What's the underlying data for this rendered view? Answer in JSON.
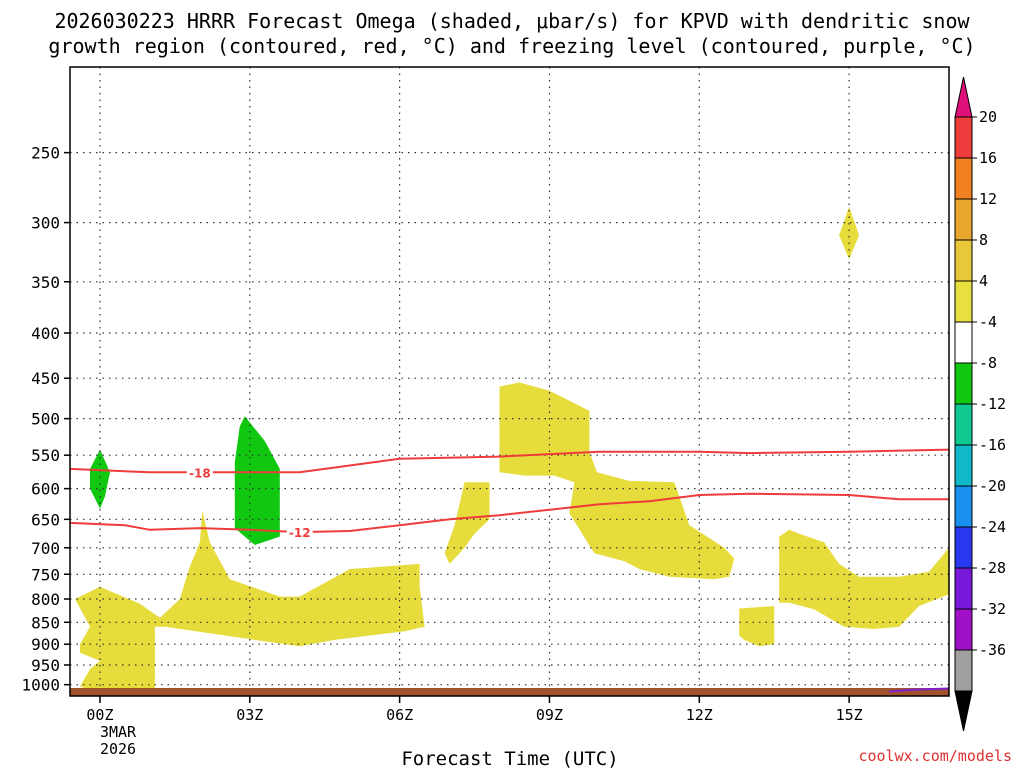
{
  "chart_data": {
    "type": "contour",
    "title_line1": "2026030223 HRRR Forecast Omega (shaded, μbar/s) for KPVD with dendritic snow",
    "title_line2": "growth region (contoured, red, °C) and freezing level (contoured, purple, °C)",
    "xlabel": "Forecast Time (UTC)",
    "credit": "coolwx.com/models",
    "x_ticks": [
      "00Z",
      "03Z",
      "06Z",
      "09Z",
      "12Z",
      "15Z"
    ],
    "x_tick_hours": [
      0,
      3,
      6,
      9,
      12,
      15
    ],
    "x_range_hours": [
      -0.6,
      17.0
    ],
    "date_line1": "3MAR",
    "date_line2": "2026",
    "y_ticks": [
      250,
      300,
      350,
      400,
      450,
      500,
      550,
      600,
      650,
      700,
      750,
      800,
      850,
      900,
      950,
      1000
    ],
    "y_range_hpa": [
      200,
      1030
    ],
    "colorbar": {
      "labels": [
        "20",
        "16",
        "12",
        "8",
        "4",
        "-4",
        "-8",
        "-12",
        "-16",
        "-20",
        "-24",
        "-28",
        "-32",
        "-36"
      ],
      "colors": [
        "#ee3b3b",
        "#f08020",
        "#e8a830",
        "#e8c838",
        "#e8e040",
        "#ffffff",
        "#10c810",
        "#10c890",
        "#10b8c8",
        "#1890f0",
        "#2838f0",
        "#7818d8",
        "#a010c8",
        "#a0a0a0"
      ],
      "top_color": "#e0107a",
      "bottom_color": "#000000"
    },
    "positive_fill": "#e6dc3c",
    "negative_fill": "#10c810",
    "contours": [
      {
        "label": "-18",
        "color": "#ee3b3b",
        "label_hour": 2.0,
        "points": [
          [
            -0.6,
            570
          ],
          [
            1,
            575
          ],
          [
            2,
            575
          ],
          [
            4,
            575
          ],
          [
            6,
            555
          ],
          [
            8,
            552
          ],
          [
            10,
            545
          ],
          [
            12,
            545
          ],
          [
            13,
            547
          ],
          [
            15,
            545
          ],
          [
            17,
            542
          ]
        ]
      },
      {
        "label": "-12",
        "color": "#ee3b3b",
        "label_hour": 4.0,
        "points": [
          [
            -0.6,
            656
          ],
          [
            0.5,
            660
          ],
          [
            1,
            668
          ],
          [
            2,
            665
          ],
          [
            3,
            668
          ],
          [
            4,
            672
          ],
          [
            5,
            670
          ],
          [
            6,
            660
          ],
          [
            7,
            650
          ],
          [
            8,
            643
          ],
          [
            9,
            634
          ],
          [
            10,
            625
          ],
          [
            11,
            620
          ],
          [
            12,
            610
          ],
          [
            13,
            608
          ],
          [
            15,
            610
          ],
          [
            16,
            617
          ],
          [
            17,
            617
          ]
        ]
      },
      {
        "label": "",
        "color": "#8020d0",
        "label_hour": null,
        "points": [
          [
            15.8,
            1018
          ],
          [
            16.3,
            1013
          ],
          [
            17,
            1010
          ]
        ]
      }
    ],
    "positive_regions": [
      [
        [
          -0.4,
          900
        ],
        [
          -0.2,
          860
        ],
        [
          -0.5,
          800
        ],
        [
          0,
          775
        ],
        [
          0.8,
          810
        ],
        [
          1.2,
          840
        ],
        [
          1.6,
          800
        ],
        [
          1.8,
          735
        ],
        [
          2,
          690
        ],
        [
          2.05,
          635
        ],
        [
          2.2,
          690
        ],
        [
          2.6,
          760
        ],
        [
          3.6,
          795
        ],
        [
          4,
          795
        ],
        [
          5,
          740
        ],
        [
          6.4,
          730
        ],
        [
          6.4,
          775
        ],
        [
          6.5,
          860
        ],
        [
          6.1,
          870
        ],
        [
          4.7,
          890
        ],
        [
          4,
          905
        ],
        [
          1.3,
          860
        ],
        [
          1.1,
          860
        ],
        [
          1.1,
          1020
        ],
        [
          1.5,
          1018
        ],
        [
          0.5,
          1025
        ],
        [
          0,
          1020
        ],
        [
          -0.4,
          1005
        ],
        [
          -0.2,
          960
        ],
        [
          0,
          940
        ],
        [
          -0.4,
          920
        ]
      ],
      [
        [
          7.0,
          730
        ],
        [
          6.9,
          710
        ],
        [
          7.1,
          660
        ],
        [
          7.3,
          590
        ],
        [
          7.8,
          590
        ],
        [
          7.8,
          650
        ],
        [
          7.5,
          675
        ],
        [
          7.3,
          700
        ]
      ],
      [
        [
          8.0,
          460
        ],
        [
          8.4,
          455
        ],
        [
          9,
          465
        ],
        [
          9.8,
          490
        ],
        [
          9.8,
          545
        ],
        [
          9.95,
          575
        ],
        [
          10.6,
          588
        ],
        [
          11.5,
          590
        ],
        [
          11.8,
          660
        ],
        [
          12.5,
          700
        ],
        [
          12.7,
          720
        ],
        [
          12.6,
          755
        ],
        [
          12.3,
          760
        ],
        [
          11.4,
          755
        ],
        [
          10.8,
          740
        ],
        [
          10.5,
          725
        ],
        [
          9.9,
          710
        ],
        [
          9.4,
          640
        ],
        [
          9.5,
          590
        ],
        [
          9.1,
          580
        ],
        [
          8.5,
          580
        ],
        [
          8.0,
          575
        ]
      ],
      [
        [
          12.8,
          880
        ],
        [
          12.8,
          820
        ],
        [
          13.5,
          815
        ],
        [
          13.5,
          900
        ],
        [
          13.2,
          905
        ],
        [
          12.9,
          890
        ]
      ],
      [
        [
          13.6,
          700
        ],
        [
          13.6,
          680
        ],
        [
          13.8,
          668
        ],
        [
          14.0,
          675
        ],
        [
          14.5,
          690
        ],
        [
          14.8,
          730
        ],
        [
          15.2,
          755
        ],
        [
          16,
          755
        ],
        [
          16.6,
          745
        ],
        [
          17,
          700
        ],
        [
          17,
          790
        ],
        [
          16.4,
          815
        ],
        [
          16.0,
          860
        ],
        [
          15.5,
          865
        ],
        [
          14.9,
          860
        ],
        [
          14.3,
          822
        ],
        [
          13.8,
          808
        ],
        [
          13.6,
          808
        ]
      ],
      [
        [
          15.0,
          288
        ],
        [
          15.2,
          310
        ],
        [
          15.0,
          330
        ],
        [
          14.8,
          310
        ]
      ]
    ],
    "negative_regions": [
      [
        [
          0,
          542
        ],
        [
          0.2,
          575
        ],
        [
          0.1,
          612
        ],
        [
          0,
          632
        ],
        [
          -0.2,
          600
        ],
        [
          -0.2,
          570
        ]
      ],
      [
        [
          2.9,
          497
        ],
        [
          3.3,
          530
        ],
        [
          3.6,
          570
        ],
        [
          3.6,
          680
        ],
        [
          3.1,
          695
        ],
        [
          2.7,
          665
        ],
        [
          2.7,
          560
        ],
        [
          2.8,
          510
        ]
      ]
    ]
  }
}
